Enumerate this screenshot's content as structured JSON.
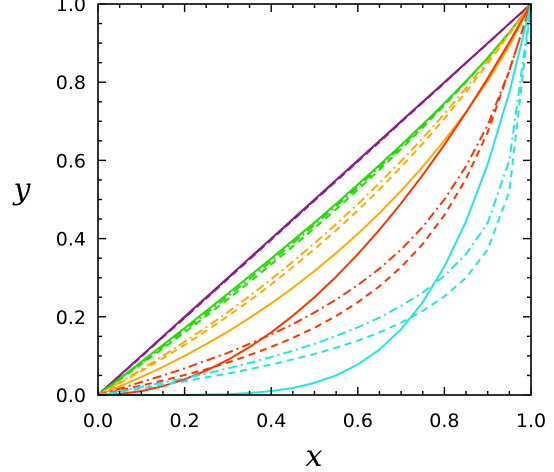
{
  "chart_data": {
    "type": "line",
    "title": "",
    "xlabel": "x",
    "ylabel": "y",
    "xlim": [
      0.0,
      1.0
    ],
    "ylim": [
      0.0,
      1.0
    ],
    "xticks": [
      "0.0",
      "0.2",
      "0.4",
      "0.6",
      "0.8",
      "1.0"
    ],
    "yticks": [
      "0.0",
      "0.2",
      "0.4",
      "0.6",
      "0.8",
      "1.0"
    ],
    "grid": false,
    "legend": "none",
    "x": [
      0,
      0.05,
      0.1,
      0.15,
      0.2,
      0.25,
      0.3,
      0.35,
      0.4,
      0.45,
      0.5,
      0.55,
      0.6,
      0.65,
      0.7,
      0.75,
      0.8,
      0.85,
      0.9,
      0.95,
      1.0
    ],
    "series": [
      {
        "color": "#8b1a8b",
        "dash": "solid",
        "values": [
          0,
          0.05,
          0.1,
          0.15,
          0.2,
          0.25,
          0.3,
          0.35,
          0.4,
          0.45,
          0.5,
          0.55,
          0.6,
          0.65,
          0.7,
          0.75,
          0.8,
          0.85,
          0.9,
          0.95,
          1.0
        ]
      },
      {
        "color": "#8b1a8b",
        "dash": "dashed",
        "values": [
          0,
          0.049,
          0.098,
          0.148,
          0.197,
          0.247,
          0.297,
          0.347,
          0.397,
          0.447,
          0.497,
          0.547,
          0.597,
          0.647,
          0.698,
          0.748,
          0.798,
          0.849,
          0.899,
          0.95,
          1.0
        ]
      },
      {
        "color": "#8b1a8b",
        "dash": "dashdot",
        "values": [
          0,
          0.0495,
          0.099,
          0.149,
          0.1985,
          0.248,
          0.2985,
          0.3485,
          0.3985,
          0.4485,
          0.4985,
          0.5485,
          0.5985,
          0.6485,
          0.699,
          0.749,
          0.799,
          0.8495,
          0.8995,
          0.95,
          1.0
        ]
      },
      {
        "color": "#22dd00",
        "dash": "solid",
        "values": [
          0,
          0.042,
          0.085,
          0.128,
          0.171,
          0.215,
          0.259,
          0.304,
          0.349,
          0.395,
          0.441,
          0.489,
          0.538,
          0.588,
          0.639,
          0.692,
          0.746,
          0.803,
          0.862,
          0.927,
          1.0
        ]
      },
      {
        "color": "#22dd00",
        "dash": "dashed",
        "values": [
          0,
          0.039,
          0.079,
          0.119,
          0.16,
          0.202,
          0.245,
          0.289,
          0.334,
          0.38,
          0.427,
          0.475,
          0.525,
          0.576,
          0.629,
          0.684,
          0.741,
          0.8,
          0.862,
          0.928,
          1.0
        ]
      },
      {
        "color": "#22dd00",
        "dash": "dashdot",
        "values": [
          0,
          0.041,
          0.082,
          0.124,
          0.166,
          0.209,
          0.252,
          0.297,
          0.342,
          0.388,
          0.435,
          0.483,
          0.532,
          0.583,
          0.635,
          0.689,
          0.744,
          0.802,
          0.862,
          0.927,
          1.0
        ]
      },
      {
        "color": "#ffaa00",
        "dash": "solid",
        "values": [
          0,
          0.022,
          0.046,
          0.072,
          0.1,
          0.13,
          0.162,
          0.197,
          0.234,
          0.274,
          0.317,
          0.363,
          0.412,
          0.465,
          0.522,
          0.584,
          0.651,
          0.724,
          0.803,
          0.893,
          1.0
        ]
      },
      {
        "color": "#ffaa00",
        "dash": "dashed",
        "values": [
          0,
          0.03,
          0.061,
          0.094,
          0.128,
          0.164,
          0.202,
          0.241,
          0.283,
          0.327,
          0.373,
          0.421,
          0.472,
          0.526,
          0.583,
          0.643,
          0.707,
          0.775,
          0.848,
          0.923,
          1.0
        ]
      },
      {
        "color": "#ffaa00",
        "dash": "dashdot",
        "values": [
          0,
          0.032,
          0.065,
          0.1,
          0.136,
          0.173,
          0.212,
          0.253,
          0.296,
          0.341,
          0.388,
          0.437,
          0.488,
          0.542,
          0.598,
          0.657,
          0.719,
          0.785,
          0.854,
          0.926,
          1.0
        ]
      },
      {
        "color": "#ff3300",
        "dash": "solid",
        "values": [
          0,
          0.0025,
          0.01,
          0.0225,
          0.04,
          0.0625,
          0.09,
          0.1225,
          0.16,
          0.2025,
          0.25,
          0.3025,
          0.36,
          0.4225,
          0.49,
          0.5625,
          0.64,
          0.7225,
          0.81,
          0.9025,
          1.0
        ]
      },
      {
        "color": "#ff3300",
        "dash": "dashed",
        "values": [
          0,
          0.012,
          0.024,
          0.037,
          0.051,
          0.066,
          0.083,
          0.102,
          0.123,
          0.146,
          0.172,
          0.202,
          0.237,
          0.278,
          0.327,
          0.386,
          0.46,
          0.553,
          0.672,
          0.83,
          1.0
        ]
      },
      {
        "color": "#ff3300",
        "dash": "dashdot",
        "values": [
          0,
          0.016,
          0.033,
          0.05,
          0.068,
          0.088,
          0.108,
          0.131,
          0.155,
          0.181,
          0.211,
          0.244,
          0.281,
          0.323,
          0.372,
          0.43,
          0.5,
          0.585,
          0.69,
          0.83,
          1.0
        ]
      },
      {
        "color": "#22e5e5",
        "dash": "solid",
        "values": [
          0,
          0.0,
          0.0,
          0.0,
          0.0,
          0.001,
          0.002,
          0.005,
          0.01,
          0.018,
          0.031,
          0.05,
          0.078,
          0.116,
          0.168,
          0.237,
          0.328,
          0.444,
          0.59,
          0.774,
          1.0
        ]
      },
      {
        "color": "#22e5e5",
        "dash": "dashed",
        "values": [
          0,
          0.008,
          0.017,
          0.026,
          0.035,
          0.045,
          0.055,
          0.066,
          0.078,
          0.091,
          0.105,
          0.121,
          0.139,
          0.16,
          0.185,
          0.215,
          0.252,
          0.3,
          0.372,
          0.52,
          1.0
        ]
      },
      {
        "color": "#22e5e5",
        "dash": "dashdot",
        "values": [
          0,
          0.01,
          0.021,
          0.032,
          0.043,
          0.055,
          0.068,
          0.082,
          0.097,
          0.113,
          0.131,
          0.151,
          0.173,
          0.198,
          0.228,
          0.262,
          0.305,
          0.36,
          0.44,
          0.6,
          1.0
        ]
      }
    ]
  }
}
